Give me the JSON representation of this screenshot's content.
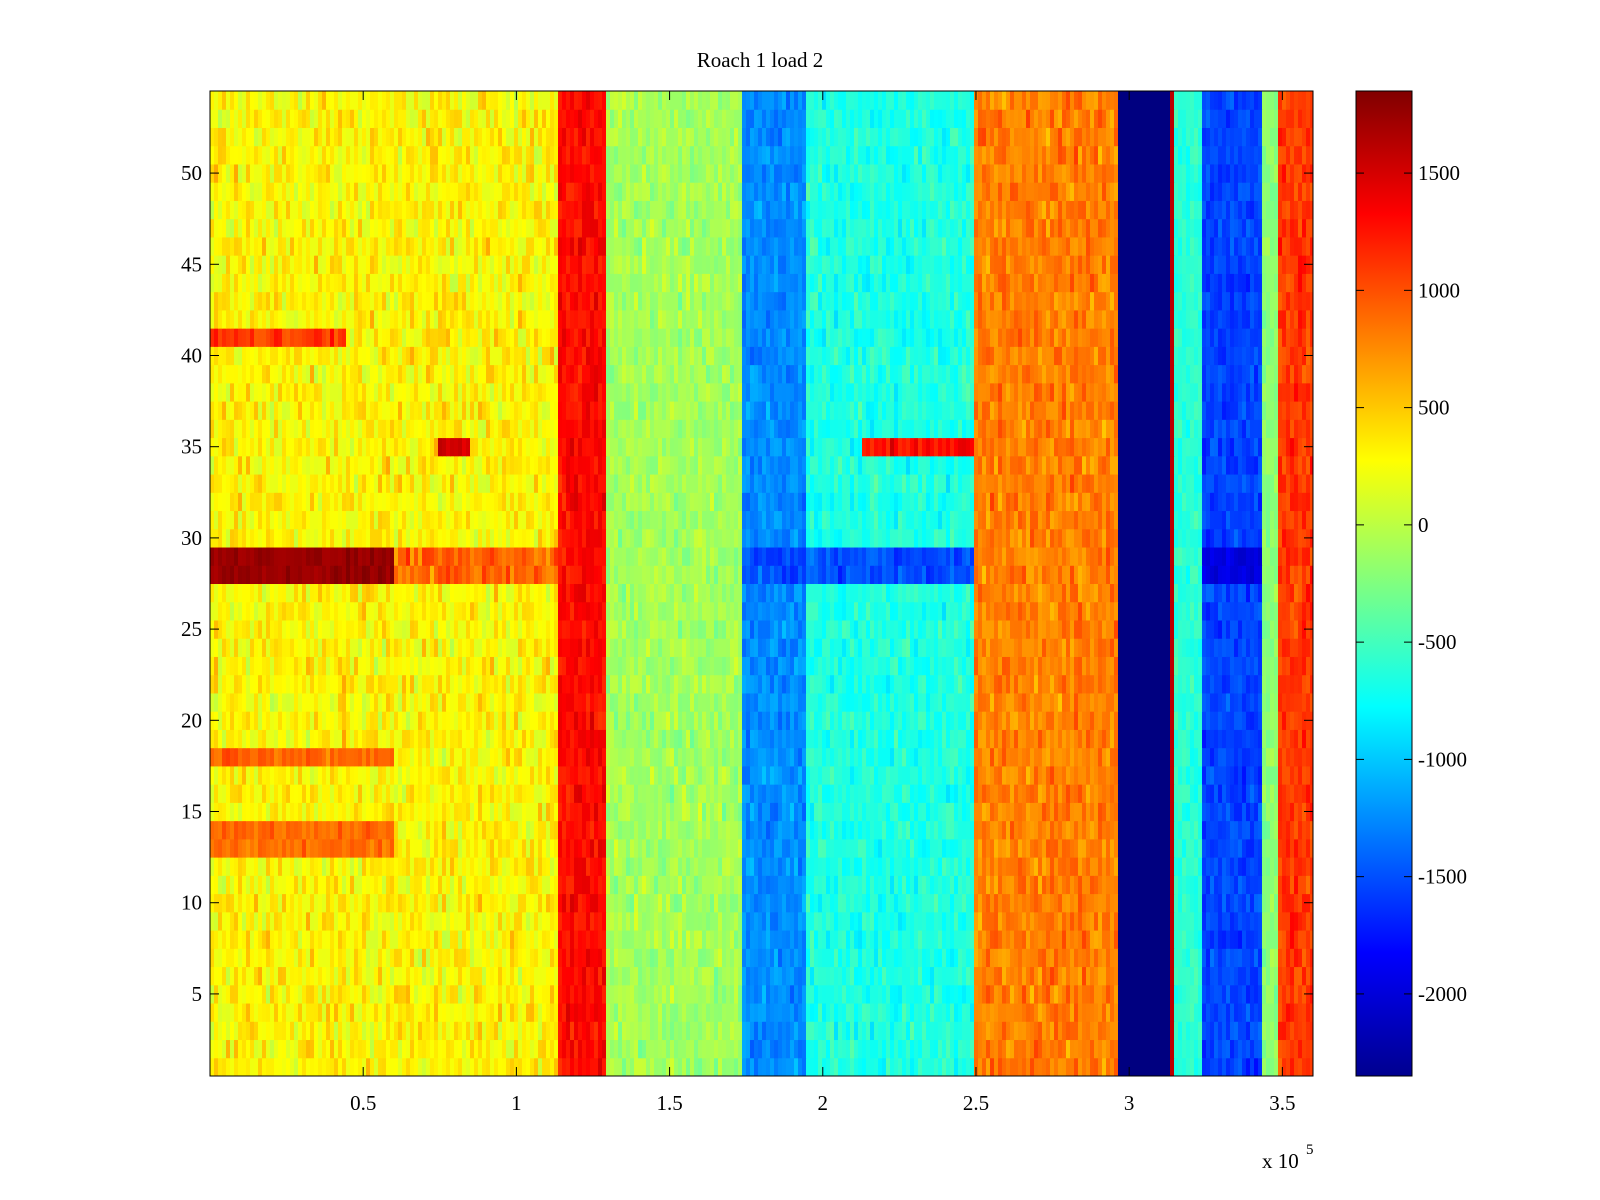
{
  "chart_data": {
    "type": "heatmap",
    "title": "Roach 1 load 2",
    "xlabel": "",
    "ylabel": "",
    "x_multiplier_label": "x 10",
    "x_multiplier_exponent": "5",
    "x_unit_scale": 100000,
    "xlim": [
      0,
      3.6
    ],
    "ylim": [
      0.5,
      54.5
    ],
    "x_ticks": [
      0.5,
      1,
      1.5,
      2,
      2.5,
      3,
      3.5
    ],
    "x_tick_labels": [
      "0.5",
      "1",
      "1.5",
      "2",
      "2.5",
      "3",
      "3.5"
    ],
    "y_ticks": [
      5,
      10,
      15,
      20,
      25,
      30,
      35,
      40,
      45,
      50
    ],
    "y_tick_labels": [
      "5",
      "10",
      "15",
      "20",
      "25",
      "30",
      "35",
      "40",
      "45",
      "50"
    ],
    "rows": 54,
    "colormap": "jet",
    "clim": [
      -2350,
      1850
    ],
    "colorbar": {
      "ticks": [
        1500,
        1000,
        500,
        0,
        -500,
        -1000,
        -1500,
        -2000
      ],
      "tick_labels": [
        "1500",
        "1000",
        "500",
        "0",
        "-500",
        "-1000",
        "-1500",
        "-2000"
      ]
    },
    "column_bands": [
      {
        "x_start": 0.0,
        "x_end": 1.13,
        "mean": 300,
        "noise": 380
      },
      {
        "x_start": 1.13,
        "x_end": 1.29,
        "mean": 1300,
        "noise": 260
      },
      {
        "x_start": 1.29,
        "x_end": 1.74,
        "mean": -100,
        "noise": 280
      },
      {
        "x_start": 1.74,
        "x_end": 1.94,
        "mean": -1250,
        "noise": 260
      },
      {
        "x_start": 1.94,
        "x_end": 2.5,
        "mean": -650,
        "noise": 300
      },
      {
        "x_start": 2.5,
        "x_end": 2.96,
        "mean": 800,
        "noise": 320
      },
      {
        "x_start": 2.96,
        "x_end": 3.13,
        "mean": -2350,
        "noise": 0
      },
      {
        "x_start": 3.13,
        "x_end": 3.14,
        "mean": 1600,
        "noise": 0
      },
      {
        "x_start": 3.14,
        "x_end": 3.24,
        "mean": -600,
        "noise": 220
      },
      {
        "x_start": 3.24,
        "x_end": 3.44,
        "mean": -1550,
        "noise": 250
      },
      {
        "x_start": 3.44,
        "x_end": 3.48,
        "mean": -200,
        "noise": 200
      },
      {
        "x_start": 3.48,
        "x_end": 3.6,
        "mean": 1100,
        "noise": 300
      }
    ],
    "anomalies": [
      {
        "rows": [
          28,
          29
        ],
        "x_start": 0.0,
        "x_end": 0.6,
        "value": 1750,
        "noise": 150
      },
      {
        "rows": [
          28,
          29
        ],
        "x_start": 0.6,
        "x_end": 1.13,
        "value": 900,
        "noise": 350
      },
      {
        "rows": [
          28,
          29
        ],
        "x_start": 1.74,
        "x_end": 2.5,
        "value": -1500,
        "noise": 300
      },
      {
        "rows": [
          28,
          29
        ],
        "x_start": 3.24,
        "x_end": 3.44,
        "value": -1950,
        "noise": 200
      },
      {
        "rows": [
          35
        ],
        "x_start": 0.75,
        "x_end": 0.85,
        "value": 1500,
        "noise": 250
      },
      {
        "rows": [
          35
        ],
        "x_start": 2.13,
        "x_end": 2.5,
        "value": 1300,
        "noise": 350
      },
      {
        "rows": [
          41
        ],
        "x_start": 0.0,
        "x_end": 0.45,
        "value": 1100,
        "noise": 250
      },
      {
        "rows": [
          13,
          14,
          18
        ],
        "x_start": 0.0,
        "x_end": 0.6,
        "value": 900,
        "noise": 250
      }
    ]
  }
}
